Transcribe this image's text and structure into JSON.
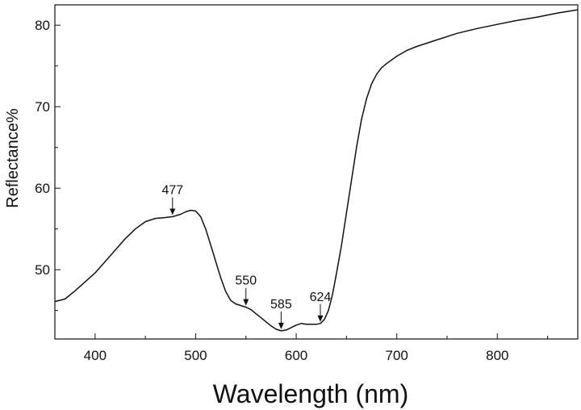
{
  "chart_data": {
    "type": "line",
    "title": "",
    "xlabel": "Wavelength (nm)",
    "ylabel": "Reflectance%",
    "xlim": [
      360,
      880
    ],
    "ylim": [
      41.5,
      82.5
    ],
    "xticks": [
      400,
      500,
      600,
      700,
      800
    ],
    "yticks": [
      50,
      60,
      70,
      80
    ],
    "grid": false,
    "legend": "none",
    "line_color": "#111111",
    "series": [
      {
        "x": [
          360,
          370,
          380,
          390,
          400,
          410,
          420,
          430,
          440,
          450,
          460,
          470,
          477,
          485,
          490,
          495,
          500,
          505,
          510,
          515,
          520,
          525,
          530,
          535,
          540,
          545,
          550,
          555,
          560,
          565,
          570,
          575,
          580,
          585,
          590,
          595,
          600,
          605,
          610,
          615,
          620,
          624,
          628,
          632,
          636,
          640,
          645,
          650,
          655,
          660,
          665,
          670,
          675,
          680,
          685,
          690,
          700,
          710,
          720,
          740,
          760,
          780,
          800,
          820,
          840,
          860,
          880
        ],
        "y": [
          46.1,
          46.4,
          47.4,
          48.5,
          49.6,
          51.0,
          52.4,
          53.8,
          55.0,
          55.9,
          56.3,
          56.4,
          56.5,
          56.8,
          57.1,
          57.3,
          57.2,
          56.5,
          55.0,
          53.0,
          51.0,
          49.0,
          47.3,
          46.2,
          45.8,
          45.6,
          45.4,
          45.1,
          44.6,
          44.1,
          43.6,
          43.1,
          42.7,
          42.5,
          42.6,
          42.9,
          43.2,
          43.4,
          43.3,
          43.3,
          43.3,
          43.4,
          43.9,
          45.0,
          46.9,
          49.5,
          53.0,
          57.0,
          61.0,
          65.0,
          68.5,
          71.0,
          72.8,
          74.0,
          74.8,
          75.3,
          76.2,
          76.9,
          77.4,
          78.2,
          79.0,
          79.6,
          80.1,
          80.6,
          81.0,
          81.5,
          81.9
        ]
      }
    ],
    "annotations": [
      {
        "text": "477",
        "x": 477,
        "y": 56.5
      },
      {
        "text": "550",
        "x": 550,
        "y": 45.4
      },
      {
        "text": "585",
        "x": 585,
        "y": 42.5
      },
      {
        "text": "624",
        "x": 624,
        "y": 43.4
      }
    ]
  }
}
